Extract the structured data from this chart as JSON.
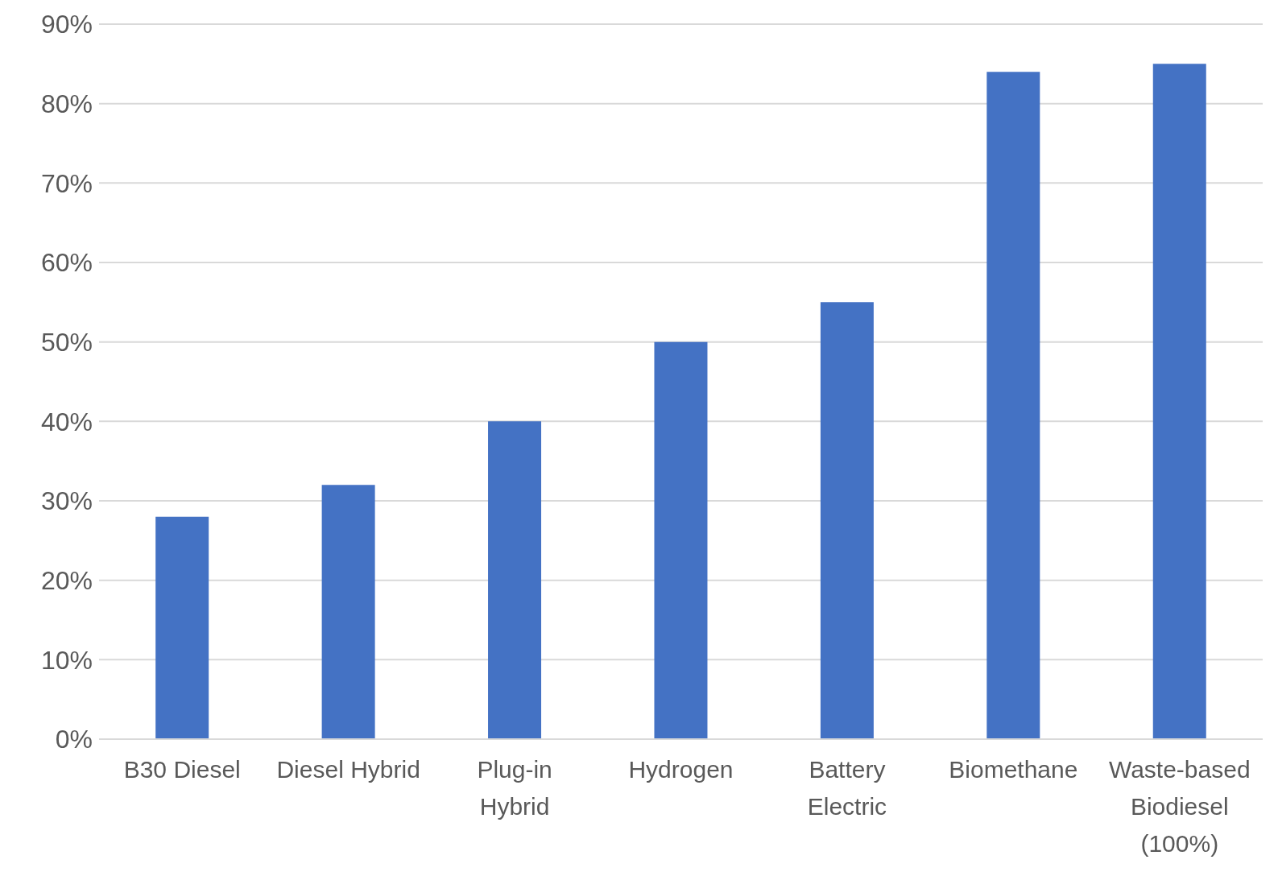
{
  "chart_data": {
    "type": "bar",
    "categories": [
      "B30 Diesel",
      "Diesel Hybrid",
      "Plug-in Hybrid",
      "Hydrogen",
      "Battery Electric",
      "Biomethane",
      "Waste-based Biodiesel (100%)"
    ],
    "values": [
      28,
      32,
      40,
      50,
      55,
      84,
      85
    ],
    "color": "#4472c4",
    "ylim": [
      0,
      90
    ],
    "yticks": [
      {
        "value": 0,
        "label": "0%"
      },
      {
        "value": 10,
        "label": "10%"
      },
      {
        "value": 20,
        "label": "20%"
      },
      {
        "value": 30,
        "label": "30%"
      },
      {
        "value": 40,
        "label": "40%"
      },
      {
        "value": 50,
        "label": "50%"
      },
      {
        "value": 60,
        "label": "60%"
      },
      {
        "value": 70,
        "label": "70%"
      },
      {
        "value": 80,
        "label": "80%"
      },
      {
        "value": 90,
        "label": "90%"
      }
    ],
    "grid": "y"
  }
}
